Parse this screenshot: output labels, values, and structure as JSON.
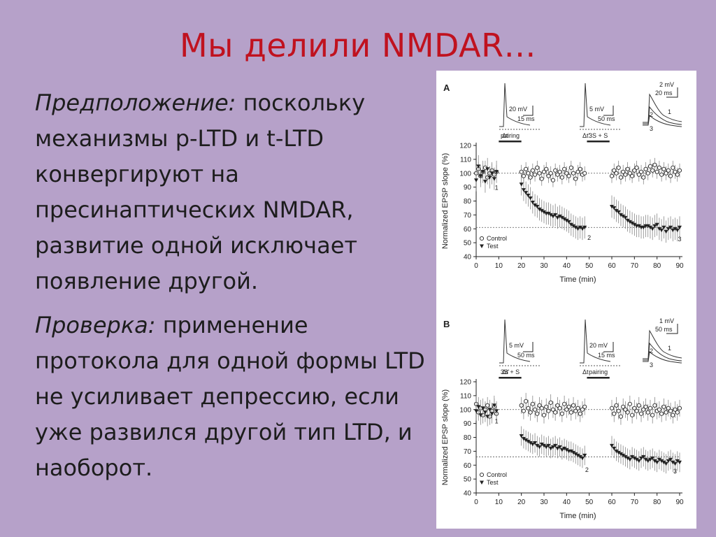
{
  "slide": {
    "title": "Мы делили NMDAR…",
    "paragraphs": [
      {
        "lead": "Предположение:",
        "text": " поскольку механизмы p-LTD и t-LTD конвергируют на пресинаптических NMDAR, развитие одной исключает появление другой."
      },
      {
        "lead": "Проверка:",
        "text": "  применение протокола для одной формы LTD не усиливает депрессию, если уже развился другой тип LTD, и наоборот."
      }
    ]
  },
  "colors": {
    "background": "#b6a1c9",
    "title": "#c0121f",
    "text": "#1d1d1d",
    "figure_bg": "#ffffff",
    "marker": "#222222",
    "error_bar": "#777777"
  },
  "chart_data": [
    {
      "panel": "A",
      "type": "scatter",
      "xlabel": "Time (min)",
      "ylabel": "Normalized EPSP slope (%)",
      "xlim": [
        0,
        90
      ],
      "ylim": [
        40,
        120
      ],
      "xticks": [
        "0",
        "10",
        "20",
        "30",
        "40",
        "50",
        "60",
        "70",
        "80",
        "90"
      ],
      "yticks": [
        "40",
        "50",
        "60",
        "70",
        "80",
        "90",
        "100",
        "110",
        "120"
      ],
      "legend": {
        "position": "bottom-left",
        "entries": [
          "Control",
          "Test"
        ]
      },
      "protocol_bars": [
        {
          "label": "pairing",
          "start": 10,
          "end": 20
        },
        {
          "label": "3S + S",
          "start": 49,
          "end": 59
        }
      ],
      "reference_lines": [
        100,
        61
      ],
      "point_labels": [
        {
          "label": "1",
          "x": 9,
          "y": 90
        },
        {
          "label": "2",
          "x": 50,
          "y": 54
        },
        {
          "label": "3",
          "x": 90,
          "y": 53
        }
      ],
      "insets": [
        {
          "scale_labels": [
            "20 mV",
            "15 ms"
          ],
          "delta_label": "Δt"
        },
        {
          "scale_labels": [
            "5 mV",
            "50 ms"
          ],
          "delta_label": "Δt'"
        },
        {
          "scale_labels": [
            "2 mV",
            "20 ms"
          ],
          "trace_labels": [
            "1",
            "2",
            "3"
          ]
        }
      ],
      "series": [
        {
          "name": "Control",
          "marker": "circle",
          "segments": [
            {
              "x": [
                0,
                1,
                2,
                3,
                4,
                5,
                6,
                7,
                8,
                9
              ],
              "y": [
                100,
                103,
                98,
                101,
                104,
                97,
                100,
                102,
                99,
                101
              ]
            },
            {
              "x": [
                20,
                21,
                22,
                23,
                24,
                25,
                26,
                27,
                28,
                29,
                30,
                31,
                32,
                33,
                34,
                35,
                36,
                37,
                38,
                39,
                40,
                41,
                42,
                43,
                44,
                45,
                46,
                47,
                48
              ],
              "y": [
                101,
                98,
                103,
                100,
                97,
                102,
                99,
                104,
                100,
                96,
                101,
                103,
                98,
                100,
                95,
                102,
                99,
                101,
                97,
                103,
                100,
                98,
                104,
                100,
                96,
                101,
                103,
                99,
                100
              ]
            },
            {
              "x": [
                60,
                61,
                62,
                63,
                64,
                65,
                66,
                67,
                68,
                69,
                70,
                71,
                72,
                73,
                74,
                75,
                76,
                77,
                78,
                79,
                80,
                81,
                82,
                83,
                84,
                85,
                86,
                87,
                88,
                89,
                90
              ],
              "y": [
                98,
                102,
                100,
                104,
                97,
                101,
                99,
                103,
                100,
                98,
                102,
                104,
                99,
                101,
                97,
                103,
                100,
                105,
                102,
                106,
                101,
                104,
                99,
                103,
                100,
                102,
                98,
                104,
                101,
                99,
                102
              ]
            }
          ],
          "error": 5
        },
        {
          "name": "Test",
          "marker": "triangle-down",
          "segments": [
            {
              "x": [
                0,
                1,
                2,
                3,
                4,
                5,
                6,
                7,
                8,
                9
              ],
              "y": [
                95,
                105,
                98,
                101,
                94,
                103,
                97,
                100,
                96,
                101
              ]
            },
            {
              "x": [
                20,
                21,
                22,
                23,
                24,
                25,
                26,
                27,
                28,
                29,
                30,
                31,
                32,
                33,
                34,
                35,
                36,
                37,
                38,
                39,
                40,
                41,
                42,
                43,
                44,
                45,
                46,
                47,
                48
              ],
              "y": [
                92,
                88,
                86,
                84,
                82,
                79,
                77,
                76,
                74,
                73,
                72,
                71,
                71,
                70,
                69,
                70,
                68,
                69,
                68,
                67,
                66,
                65,
                63,
                62,
                61,
                60,
                61,
                60,
                61
              ]
            },
            {
              "x": [
                60,
                61,
                62,
                63,
                64,
                65,
                66,
                67,
                68,
                69,
                70,
                71,
                72,
                73,
                74,
                75,
                76,
                77,
                78,
                79,
                80,
                81,
                82,
                83,
                84,
                85,
                86,
                87,
                88,
                89,
                90
              ],
              "y": [
                76,
                75,
                73,
                72,
                70,
                69,
                68,
                66,
                65,
                64,
                63,
                62,
                62,
                61,
                61,
                62,
                62,
                61,
                60,
                62,
                63,
                60,
                59,
                61,
                58,
                60,
                61,
                59,
                60,
                59,
                61
              ]
            }
          ],
          "error": 8
        }
      ]
    },
    {
      "panel": "B",
      "type": "scatter",
      "xlabel": "Time (min)",
      "ylabel": "Normalized EPSP slope (%)",
      "xlim": [
        0,
        90
      ],
      "ylim": [
        40,
        120
      ],
      "xticks": [
        "0",
        "10",
        "20",
        "30",
        "40",
        "50",
        "60",
        "70",
        "80",
        "90"
      ],
      "yticks": [
        "40",
        "50",
        "60",
        "70",
        "80",
        "90",
        "100",
        "110",
        "120"
      ],
      "legend": {
        "position": "bottom-left",
        "entries": [
          "Control",
          "Test"
        ]
      },
      "protocol_bars": [
        {
          "label": "3S + S",
          "start": 10,
          "end": 20
        },
        {
          "label": "pairing",
          "start": 49,
          "end": 59
        }
      ],
      "reference_lines": [
        100,
        66
      ],
      "point_labels": [
        {
          "label": "1",
          "x": 9,
          "y": 92
        },
        {
          "label": "2",
          "x": 49,
          "y": 57
        },
        {
          "label": "3",
          "x": 88,
          "y": 56
        }
      ],
      "insets": [
        {
          "scale_labels": [
            "5 mV",
            "50 ms"
          ],
          "delta_label": "Δt'"
        },
        {
          "scale_labels": [
            "20 mV",
            "15 ms"
          ],
          "delta_label": "Δt"
        },
        {
          "scale_labels": [
            "1 mV",
            "50 ms"
          ],
          "trace_labels": [
            "1",
            "2",
            "3"
          ]
        }
      ],
      "series": [
        {
          "name": "Control",
          "marker": "circle",
          "segments": [
            {
              "x": [
                0,
                1,
                2,
                3,
                4,
                5,
                6,
                7,
                8,
                9
              ],
              "y": [
                104,
                98,
                101,
                96,
                100,
                103,
                95,
                99,
                102,
                97
              ]
            },
            {
              "x": [
                20,
                21,
                22,
                23,
                24,
                25,
                26,
                27,
                28,
                29,
                30,
                31,
                32,
                33,
                34,
                35,
                36,
                37,
                38,
                39,
                40,
                41,
                42,
                43,
                44,
                45,
                46,
                47,
                48
              ],
              "y": [
                103,
                99,
                106,
                101,
                98,
                104,
                100,
                97,
                103,
                101,
                96,
                102,
                99,
                105,
                100,
                98,
                103,
                101,
                97,
                104,
                100,
                102,
                98,
                103,
                99,
                101,
                97,
                100,
                102
              ]
            },
            {
              "x": [
                60,
                61,
                62,
                63,
                64,
                65,
                66,
                67,
                68,
                69,
                70,
                71,
                72,
                73,
                74,
                75,
                76,
                77,
                78,
                79,
                80,
                81,
                82,
                83,
                84,
                85,
                86,
                87,
                88,
                89,
                90
              ],
              "y": [
                101,
                97,
                103,
                99,
                95,
                102,
                100,
                98,
                104,
                96,
                101,
                99,
                103,
                97,
                100,
                102,
                98,
                101,
                96,
                103,
                99,
                100,
                97,
                102,
                98,
                101,
                99,
                96,
                100,
                98,
                101
              ]
            }
          ],
          "error": 6
        },
        {
          "name": "Test",
          "marker": "triangle-down",
          "segments": [
            {
              "x": [
                0,
                1,
                2,
                3,
                4,
                5,
                6,
                7,
                8,
                9
              ],
              "y": [
                99,
                102,
                96,
                101,
                98,
                95,
                100,
                97,
                103,
                99
              ]
            },
            {
              "x": [
                20,
                21,
                22,
                23,
                24,
                25,
                26,
                27,
                28,
                29,
                30,
                31,
                32,
                33,
                34,
                35,
                36,
                37,
                38,
                39,
                40,
                41,
                42,
                43,
                44,
                45,
                46,
                47,
                48
              ],
              "y": [
                81,
                79,
                78,
                77,
                76,
                75,
                76,
                74,
                73,
                75,
                74,
                73,
                74,
                72,
                73,
                74,
                72,
                73,
                71,
                72,
                71,
                70,
                70,
                69,
                68,
                67,
                66,
                65,
                67
              ]
            },
            {
              "x": [
                60,
                61,
                62,
                63,
                64,
                65,
                66,
                67,
                68,
                69,
                70,
                71,
                72,
                73,
                74,
                75,
                76,
                77,
                78,
                79,
                80,
                81,
                82,
                83,
                84,
                85,
                86,
                87,
                88,
                89,
                90
              ],
              "y": [
                74,
                72,
                70,
                69,
                68,
                67,
                66,
                65,
                64,
                66,
                65,
                64,
                63,
                65,
                66,
                64,
                63,
                64,
                65,
                63,
                62,
                64,
                63,
                62,
                61,
                63,
                64,
                62,
                61,
                63,
                62
              ]
            }
          ],
          "error": 7
        }
      ]
    }
  ]
}
